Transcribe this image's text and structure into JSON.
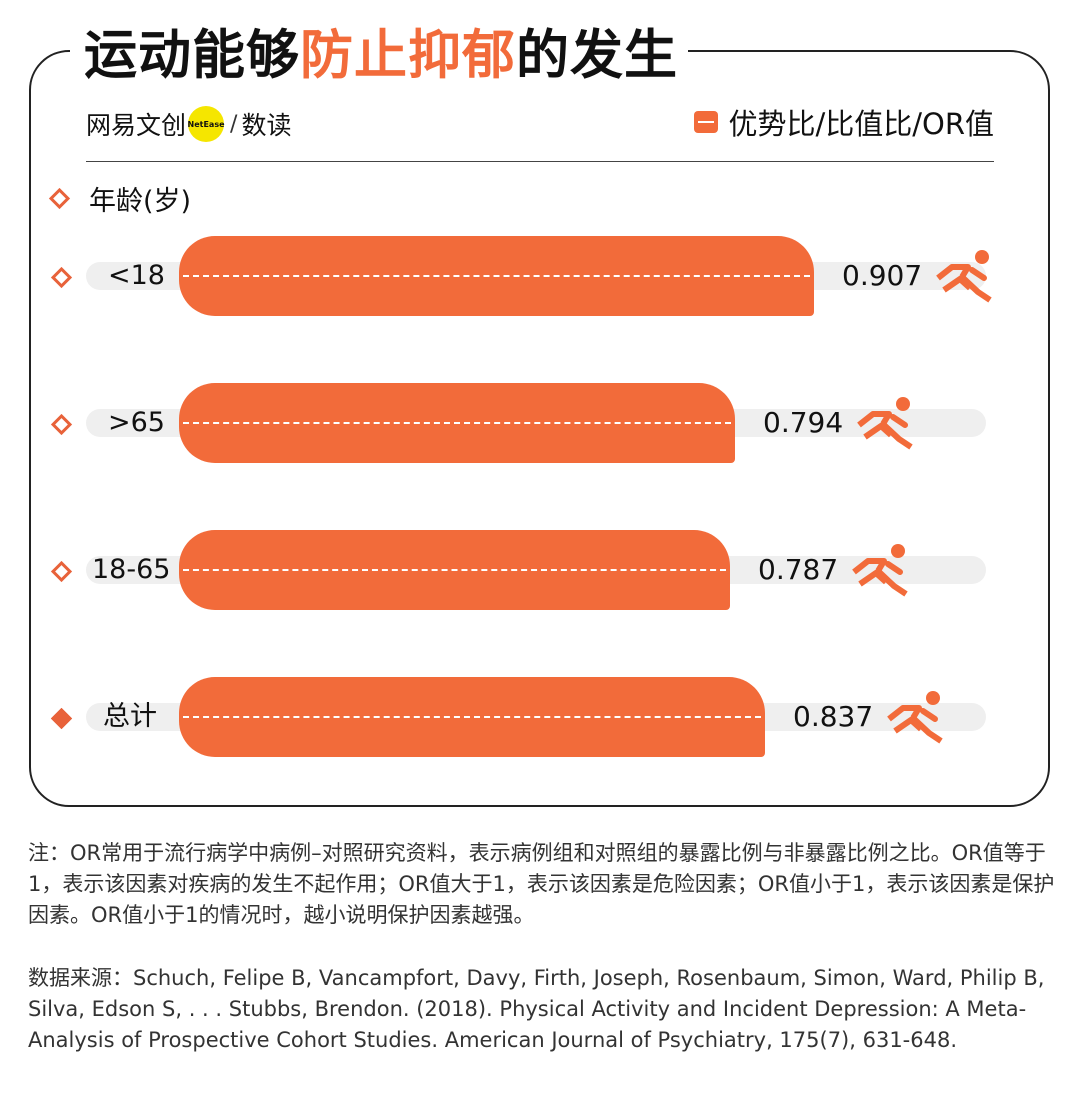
{
  "title": {
    "prefix": "运动能够",
    "highlight": "防止抑郁",
    "suffix": "的发生"
  },
  "brand": {
    "name": "网易文创",
    "badge": "NetEase",
    "sub": "数读"
  },
  "legend": {
    "label": "优势比/比值比/OR值"
  },
  "section": {
    "label": "年龄(岁)"
  },
  "colors": {
    "accent": "#f26b3a",
    "track": "#efefef"
  },
  "chart_data": {
    "type": "bar",
    "orientation": "horizontal",
    "categories": [
      "<18",
      ">65",
      "18-65",
      "总计"
    ],
    "values": [
      0.907,
      0.794,
      0.787,
      0.837
    ],
    "value_labels": [
      "0.907",
      "0.794",
      "0.787",
      "0.837"
    ],
    "xlim": [
      0,
      1
    ]
  },
  "note": "注：OR常用于流行病学中病例–对照研究资料，表示病例组和对照组的暴露比例与非暴露比例之比。OR值等于1，表示该因素对疾病的发生不起作用；OR值大于1，表示该因素是危险因素；OR值小于1，表示该因素是保护因素。OR值小于1的情况时，越小说明保护因素越强。",
  "source": "数据来源：Schuch, Felipe B, Vancampfort, Davy, Firth, Joseph, Rosenbaum, Simon, Ward, Philip B, Silva, Edson S, . . . Stubbs, Brendon. (2018). Physical Activity and Incident Depression: A Meta-Analysis of Prospective Cohort Studies. American Journal of Psychiatry, 175(7), 631-648."
}
